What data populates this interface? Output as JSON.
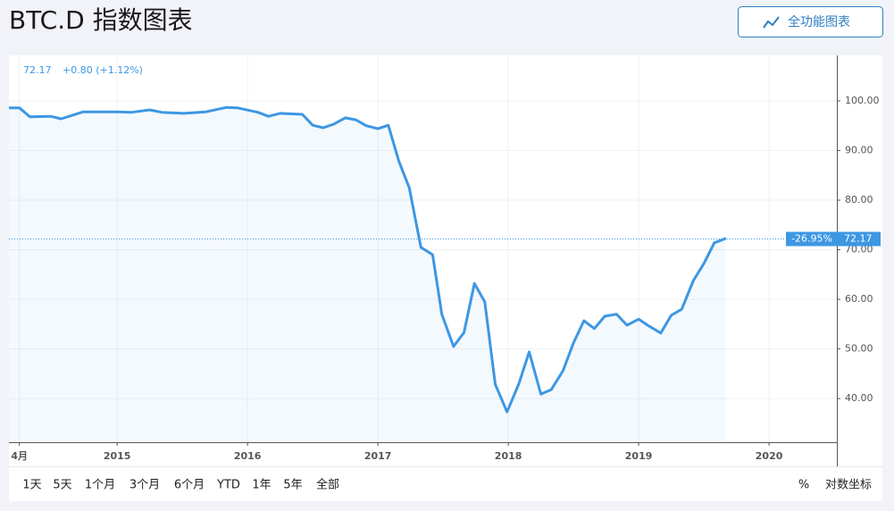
{
  "header": {
    "title": "BTC.D 指数图表",
    "button": "全功能图表"
  },
  "chart_data": {
    "type": "line",
    "last_value": 72.17,
    "change": "+0.80 (+1.12%)",
    "change_label": "-26.95%",
    "x": [
      2014.17,
      2014.25,
      2014.33,
      2014.49,
      2014.57,
      2014.74,
      2015.0,
      2015.11,
      2015.25,
      2015.34,
      2015.51,
      2015.68,
      2015.84,
      2015.92,
      2016.08,
      2016.16,
      2016.25,
      2016.42,
      2016.5,
      2016.58,
      2016.66,
      2016.75,
      2016.83,
      2016.91,
      2017.0,
      2017.08,
      2017.16,
      2017.24,
      2017.33,
      2017.42,
      2017.49,
      2017.58,
      2017.66,
      2017.74,
      2017.82,
      2017.9,
      2017.99,
      2018.08,
      2018.16,
      2018.25,
      2018.33,
      2018.42,
      2018.5,
      2018.58,
      2018.66,
      2018.74,
      2018.83,
      2018.91,
      2019.0,
      2019.08,
      2019.17,
      2019.25,
      2019.33,
      2019.42,
      2019.5,
      2019.58,
      2019.67
    ],
    "values": [
      98.6,
      98.6,
      96.8,
      96.9,
      96.4,
      97.8,
      97.8,
      97.7,
      98.2,
      97.7,
      97.5,
      97.8,
      98.7,
      98.6,
      97.7,
      96.9,
      97.5,
      97.3,
      95.1,
      94.6,
      95.3,
      96.6,
      96.2,
      95.0,
      94.4,
      95.1,
      87.9,
      82.5,
      70.5,
      69.0,
      57.0,
      50.5,
      53.3,
      63.2,
      59.5,
      42.9,
      37.3,
      42.9,
      49.4,
      40.9,
      41.8,
      45.6,
      51.2,
      55.7,
      54.1,
      56.6,
      57.0,
      54.8,
      56.0,
      54.6,
      53.2,
      56.8,
      58.0,
      63.8,
      67.2,
      71.4,
      72.3
    ],
    "color": "#3d97e3",
    "xlim": [
      2014.17,
      2020.52
    ],
    "xticks": [
      {
        "value": 2014.25,
        "label": "4月"
      },
      2015,
      2016,
      2017,
      2018,
      2019,
      2020
    ],
    "ylim": [
      31.2,
      109
    ],
    "yticks": [
      {
        "value": 40,
        "label": "40.00"
      },
      {
        "value": 50,
        "label": "50.00"
      },
      {
        "value": 60,
        "label": "60.00"
      },
      {
        "value": 70,
        "label": "70.00"
      },
      {
        "value": 80,
        "label": "80.00"
      },
      {
        "value": 90,
        "label": "90.00"
      },
      {
        "value": 100,
        "label": "100.00"
      }
    ],
    "grid": true
  },
  "toolbar": {
    "ranges": [
      "1天",
      "5天",
      "1个月",
      "3个月",
      "6个月",
      "YTD",
      "1年",
      "5年",
      "全部"
    ],
    "percent": "%",
    "log": "对数坐标"
  }
}
